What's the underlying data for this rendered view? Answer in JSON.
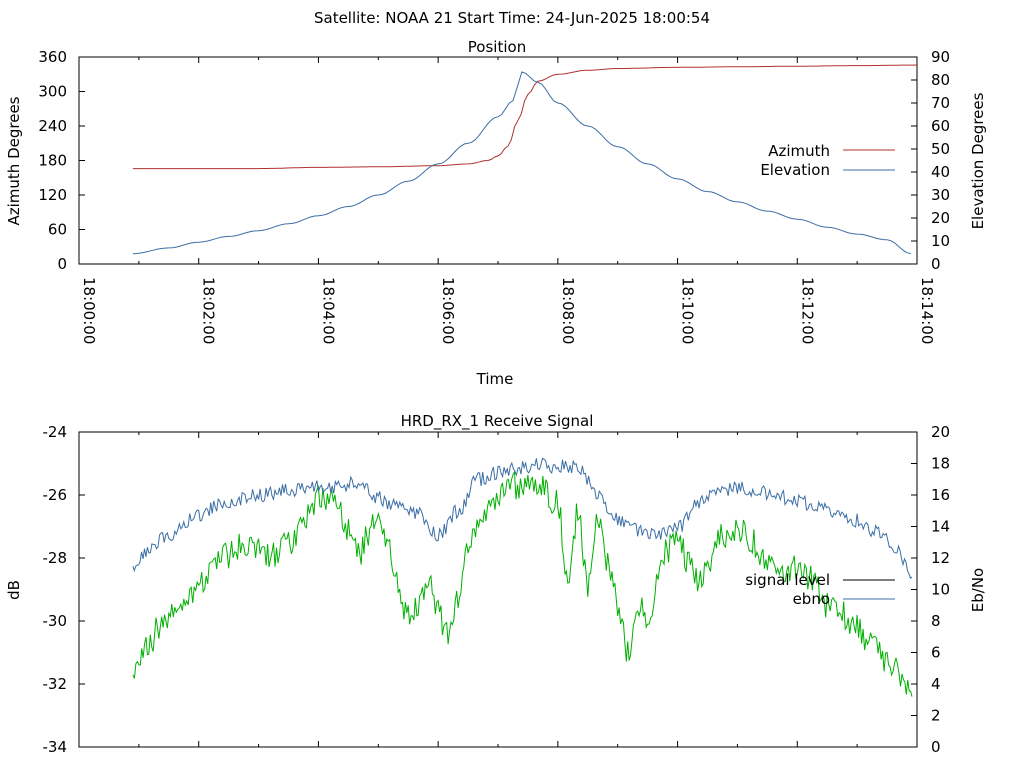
{
  "header": {
    "title": "Satellite: NOAA 21    Start Time: 24-Jun-2025 18:00:54"
  },
  "colors": {
    "azimuth": "#b03030",
    "elevation": "#3b6ea5",
    "signal_level": "#00b000",
    "ebno": "#3b6ea5",
    "axis": "#000000",
    "background": "#ffffff"
  },
  "chart_data": [
    {
      "type": "line",
      "title": "Position",
      "xlabel": "Time",
      "ylabel": "Azimuth Degrees",
      "y2label": "Elevation Degrees",
      "xlim": [
        "18:00:00",
        "18:14:00"
      ],
      "ylim": [
        0,
        360
      ],
      "y2lim": [
        0,
        90
      ],
      "xticks": [
        "18:00:00",
        "18:02:00",
        "18:04:00",
        "18:06:00",
        "18:08:00",
        "18:10:00",
        "18:12:00",
        "18:14:00"
      ],
      "yticks": [
        "0",
        "60",
        "120",
        "180",
        "240",
        "300",
        "360"
      ],
      "y2ticks": [
        "0",
        "10",
        "20",
        "30",
        "40",
        "50",
        "60",
        "70",
        "80",
        "90"
      ],
      "legend": "right",
      "series": [
        {
          "name": "Azimuth",
          "axis": "left",
          "x": [
            "18:00:54",
            "18:02:00",
            "18:03:00",
            "18:04:00",
            "18:05:00",
            "18:06:00",
            "18:06:30",
            "18:06:50",
            "18:07:00",
            "18:07:10",
            "18:07:20",
            "18:07:30",
            "18:07:40",
            "18:08:00",
            "18:08:30",
            "18:09:00",
            "18:10:00",
            "18:11:00",
            "18:12:00",
            "18:13:00",
            "18:14:00"
          ],
          "values": [
            166,
            166,
            166,
            168,
            169,
            171,
            174,
            180,
            188,
            205,
            250,
            295,
            318,
            330,
            337,
            340,
            342,
            343,
            344,
            345,
            346
          ]
        },
        {
          "name": "Elevation",
          "axis": "right",
          "x": [
            "18:00:54",
            "18:01:30",
            "18:02:00",
            "18:02:30",
            "18:03:00",
            "18:03:30",
            "18:04:00",
            "18:04:30",
            "18:05:00",
            "18:05:30",
            "18:06:00",
            "18:06:30",
            "18:07:00",
            "18:07:15",
            "18:07:24",
            "18:07:40",
            "18:08:00",
            "18:08:30",
            "18:09:00",
            "18:09:30",
            "18:10:00",
            "18:10:30",
            "18:11:00",
            "18:11:30",
            "18:12:00",
            "18:12:30",
            "18:13:00",
            "18:13:30",
            "18:13:54"
          ],
          "values": [
            4.5,
            7,
            9.5,
            12,
            14.5,
            17.5,
            21,
            25,
            30,
            36,
            43.5,
            52.5,
            64,
            71,
            83.5,
            79,
            70,
            60,
            51,
            43.5,
            37,
            31.5,
            27,
            23,
            19.5,
            16,
            13,
            10.5,
            4.5
          ]
        }
      ]
    },
    {
      "type": "line",
      "title": "HRD_RX_1 Receive Signal",
      "ylabel": "dB",
      "y2label": "Eb/No",
      "ylim": [
        -34,
        -24
      ],
      "y2lim": [
        0,
        20
      ],
      "yticks": [
        "-34",
        "-32",
        "-30",
        "-28",
        "-26",
        "-24"
      ],
      "y2ticks": [
        "0",
        "2",
        "4",
        "6",
        "8",
        "10",
        "12",
        "14",
        "16",
        "18",
        "20"
      ],
      "legend": "right",
      "series": [
        {
          "name": "signal level",
          "axis": "left",
          "x": [
            "18:00:54",
            "18:01:00",
            "18:01:10",
            "18:01:20",
            "18:01:30",
            "18:01:45",
            "18:02:00",
            "18:02:15",
            "18:02:30",
            "18:02:45",
            "18:03:00",
            "18:03:15",
            "18:03:30",
            "18:03:45",
            "18:04:00",
            "18:04:15",
            "18:04:30",
            "18:04:40",
            "18:04:50",
            "18:05:00",
            "18:05:10",
            "18:05:20",
            "18:05:30",
            "18:05:40",
            "18:05:50",
            "18:06:00",
            "18:06:10",
            "18:06:20",
            "18:06:30",
            "18:06:45",
            "18:07:00",
            "18:07:15",
            "18:07:30",
            "18:07:45",
            "18:08:00",
            "18:08:10",
            "18:08:20",
            "18:08:30",
            "18:08:40",
            "18:08:50",
            "18:09:00",
            "18:09:10",
            "18:09:20",
            "18:09:30",
            "18:09:45",
            "18:10:00",
            "18:10:10",
            "18:10:20",
            "18:10:30",
            "18:10:45",
            "18:11:00",
            "18:11:15",
            "18:11:30",
            "18:11:45",
            "18:12:00",
            "18:12:15",
            "18:12:30",
            "18:12:45",
            "18:13:00",
            "18:13:15",
            "18:13:30",
            "18:13:45",
            "18:13:55"
          ],
          "values": [
            -31.5,
            -31.3,
            -30.8,
            -30.2,
            -29.8,
            -29.5,
            -28.8,
            -28.3,
            -27.9,
            -27.6,
            -27.7,
            -27.9,
            -27.6,
            -26.8,
            -26.1,
            -26.3,
            -27.0,
            -27.9,
            -27.2,
            -26.6,
            -27.4,
            -28.9,
            -29.9,
            -29.6,
            -28.7,
            -29.7,
            -30.5,
            -29.2,
            -27.7,
            -26.6,
            -26.1,
            -25.7,
            -25.6,
            -25.8,
            -26.3,
            -28.6,
            -26.6,
            -28.9,
            -26.9,
            -28.1,
            -29.4,
            -31.0,
            -29.5,
            -30.0,
            -27.9,
            -27.3,
            -28.1,
            -28.7,
            -28.2,
            -27.3,
            -27.0,
            -27.5,
            -28.1,
            -28.7,
            -28.3,
            -28.7,
            -29.5,
            -29.8,
            -30.2,
            -30.8,
            -31.2,
            -31.8,
            -32.4
          ]
        },
        {
          "name": "ebno",
          "axis": "right",
          "x": [
            "18:00:54",
            "18:01:10",
            "18:01:30",
            "18:02:00",
            "18:02:30",
            "18:03:00",
            "18:03:30",
            "18:04:00",
            "18:04:20",
            "18:04:40",
            "18:05:00",
            "18:05:20",
            "18:05:40",
            "18:06:00",
            "18:06:20",
            "18:06:40",
            "18:07:00",
            "18:07:20",
            "18:07:40",
            "18:08:00",
            "18:08:20",
            "18:08:40",
            "18:09:00",
            "18:09:20",
            "18:09:40",
            "18:10:00",
            "18:10:20",
            "18:10:40",
            "18:11:00",
            "18:11:20",
            "18:11:40",
            "18:12:00",
            "18:12:20",
            "18:12:40",
            "18:13:00",
            "18:13:20",
            "18:13:40",
            "18:13:55"
          ],
          "values": [
            11.5,
            12.5,
            13.5,
            14.8,
            15.6,
            16.0,
            16.3,
            16.6,
            16.5,
            16.8,
            15.8,
            15.2,
            14.8,
            13.4,
            15.0,
            17.0,
            17.4,
            17.7,
            17.9,
            17.8,
            17.8,
            16.0,
            14.5,
            13.8,
            13.6,
            13.9,
            15.5,
            16.2,
            16.5,
            16.3,
            15.9,
            15.6,
            15.2,
            14.9,
            14.4,
            13.6,
            12.6,
            10.8
          ]
        }
      ]
    }
  ]
}
